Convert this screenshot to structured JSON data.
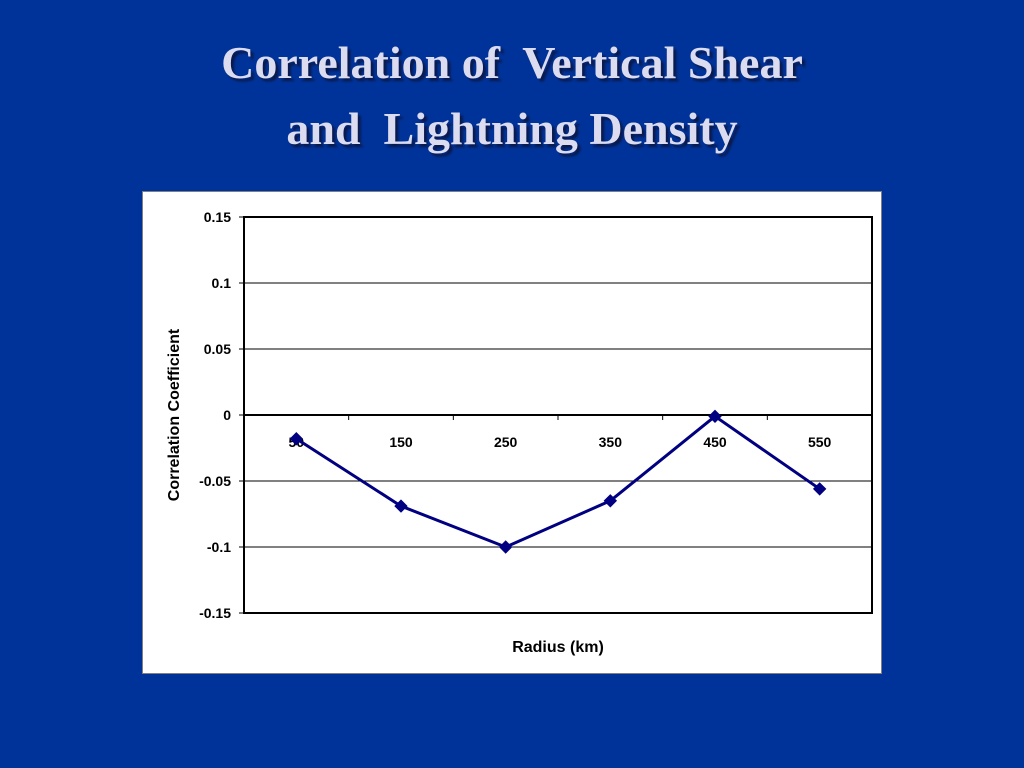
{
  "slide": {
    "title_line1": "Correlation of  Vertical Shear",
    "title_line2": "and  Lightning Density",
    "background_color": "#003399",
    "title_color": "#dcdcf0"
  },
  "chart_data": {
    "type": "line",
    "title": "",
    "xlabel": "Radius (km)",
    "ylabel": "Correlation Coefficient",
    "categories": [
      "50",
      "150",
      "250",
      "350",
      "450",
      "550"
    ],
    "series": [
      {
        "values": [
          -0.018,
          -0.069,
          -0.1,
          -0.065,
          -0.001,
          -0.056
        ],
        "color": "#000080",
        "marker": "diamond"
      }
    ],
    "ylim": [
      -0.15,
      0.15
    ],
    "yticks": [
      0.15,
      0.1,
      0.05,
      0,
      -0.05,
      -0.1,
      -0.15
    ],
    "ytick_labels": [
      "0.15",
      "0.1",
      "0.05",
      "0",
      "-0.05",
      "-0.1",
      "-0.15"
    ],
    "grid": true,
    "legend": "none"
  }
}
